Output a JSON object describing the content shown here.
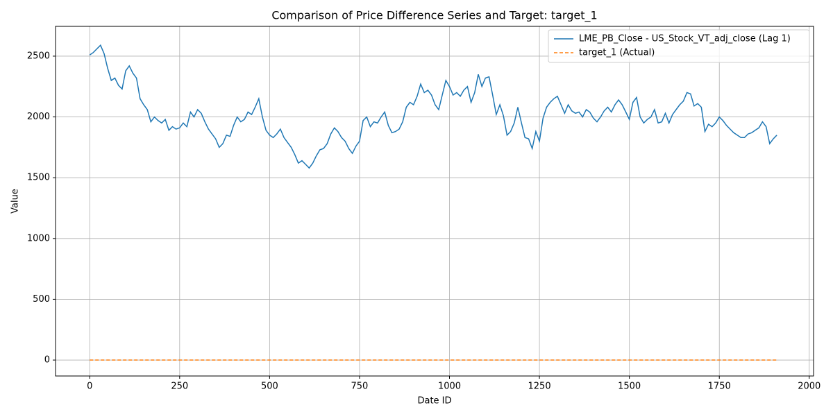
{
  "chart_data": {
    "type": "line",
    "title": "Comparison of Price Difference Series and Target: target_1",
    "x_label": "Date ID",
    "y_label": "Value",
    "xlim": [
      -95,
      2012
    ],
    "ylim": [
      -131,
      2745
    ],
    "xticks": [
      0,
      250,
      500,
      750,
      1000,
      1250,
      1500,
      1750,
      2000
    ],
    "yticks": [
      0,
      500,
      1000,
      1500,
      2000,
      2500
    ],
    "grid": true,
    "legend": "upper right",
    "series": [
      {
        "name": "LME_PB_Close - US_Stock_VT_adj_close (Lag 1)",
        "color": "#1f77b4",
        "style": "solid",
        "x": [
          0,
          10,
          20,
          30,
          40,
          50,
          60,
          70,
          80,
          90,
          100,
          110,
          120,
          130,
          140,
          150,
          160,
          170,
          180,
          190,
          200,
          210,
          220,
          230,
          240,
          250,
          260,
          270,
          280,
          290,
          300,
          310,
          320,
          330,
          340,
          350,
          360,
          370,
          380,
          390,
          400,
          410,
          420,
          430,
          440,
          450,
          460,
          470,
          480,
          490,
          500,
          510,
          520,
          530,
          540,
          550,
          560,
          570,
          580,
          590,
          600,
          610,
          620,
          630,
          640,
          650,
          660,
          670,
          680,
          690,
          700,
          710,
          720,
          730,
          740,
          750,
          760,
          770,
          780,
          790,
          800,
          810,
          820,
          830,
          840,
          850,
          860,
          870,
          880,
          890,
          900,
          910,
          920,
          930,
          940,
          950,
          960,
          970,
          980,
          990,
          1000,
          1010,
          1020,
          1030,
          1040,
          1050,
          1060,
          1070,
          1080,
          1090,
          1100,
          1110,
          1120,
          1130,
          1140,
          1150,
          1160,
          1170,
          1180,
          1190,
          1200,
          1210,
          1220,
          1230,
          1240,
          1250,
          1260,
          1270,
          1280,
          1290,
          1300,
          1310,
          1320,
          1330,
          1340,
          1350,
          1360,
          1370,
          1380,
          1390,
          1400,
          1410,
          1420,
          1430,
          1440,
          1450,
          1460,
          1470,
          1480,
          1490,
          1500,
          1510,
          1520,
          1530,
          1540,
          1550,
          1560,
          1570,
          1580,
          1590,
          1600,
          1610,
          1620,
          1630,
          1640,
          1650,
          1660,
          1670,
          1680,
          1690,
          1700,
          1710,
          1720,
          1730,
          1740,
          1750,
          1760,
          1770,
          1780,
          1790,
          1800,
          1810,
          1820,
          1830,
          1840,
          1850,
          1860,
          1870,
          1880,
          1890,
          1900,
          1910
        ],
        "values": [
          2510,
          2530,
          2560,
          2590,
          2520,
          2400,
          2300,
          2320,
          2260,
          2230,
          2380,
          2420,
          2360,
          2320,
          2150,
          2100,
          2060,
          1960,
          2000,
          1970,
          1950,
          1980,
          1890,
          1920,
          1900,
          1910,
          1950,
          1920,
          2040,
          2000,
          2060,
          2030,
          1960,
          1900,
          1860,
          1820,
          1750,
          1780,
          1850,
          1840,
          1930,
          2000,
          1960,
          1980,
          2040,
          2020,
          2080,
          2150,
          2000,
          1890,
          1850,
          1830,
          1860,
          1900,
          1830,
          1790,
          1750,
          1690,
          1620,
          1640,
          1610,
          1580,
          1620,
          1680,
          1730,
          1740,
          1780,
          1860,
          1910,
          1880,
          1830,
          1800,
          1740,
          1700,
          1760,
          1800,
          1970,
          2000,
          1920,
          1960,
          1950,
          2000,
          2040,
          1930,
          1870,
          1880,
          1900,
          1960,
          2080,
          2120,
          2100,
          2170,
          2270,
          2200,
          2220,
          2180,
          2100,
          2060,
          2180,
          2300,
          2250,
          2180,
          2200,
          2170,
          2220,
          2250,
          2120,
          2200,
          2350,
          2250,
          2320,
          2330,
          2180,
          2020,
          2100,
          2010,
          1850,
          1880,
          1950,
          2080,
          1950,
          1830,
          1820,
          1740,
          1880,
          1800,
          1990,
          2080,
          2120,
          2150,
          2170,
          2100,
          2030,
          2100,
          2050,
          2030,
          2040,
          2000,
          2060,
          2040,
          1990,
          1960,
          2000,
          2050,
          2080,
          2040,
          2100,
          2140,
          2100,
          2040,
          1980,
          2120,
          2160,
          2000,
          1950,
          1980,
          2000,
          2060,
          1950,
          1960,
          2030,
          1950,
          2020,
          2060,
          2100,
          2130,
          2200,
          2190,
          2090,
          2110,
          2080,
          1880,
          1940,
          1920,
          1950,
          2000,
          1970,
          1930,
          1900,
          1870,
          1850,
          1830,
          1830,
          1860,
          1870,
          1890,
          1910,
          1960,
          1920,
          1780,
          1820,
          1850
        ]
      },
      {
        "name": "target_1 (Actual)",
        "color": "#ff7f0e",
        "style": "dashed",
        "x": [
          0,
          1910
        ],
        "values": [
          0,
          0
        ]
      }
    ]
  }
}
